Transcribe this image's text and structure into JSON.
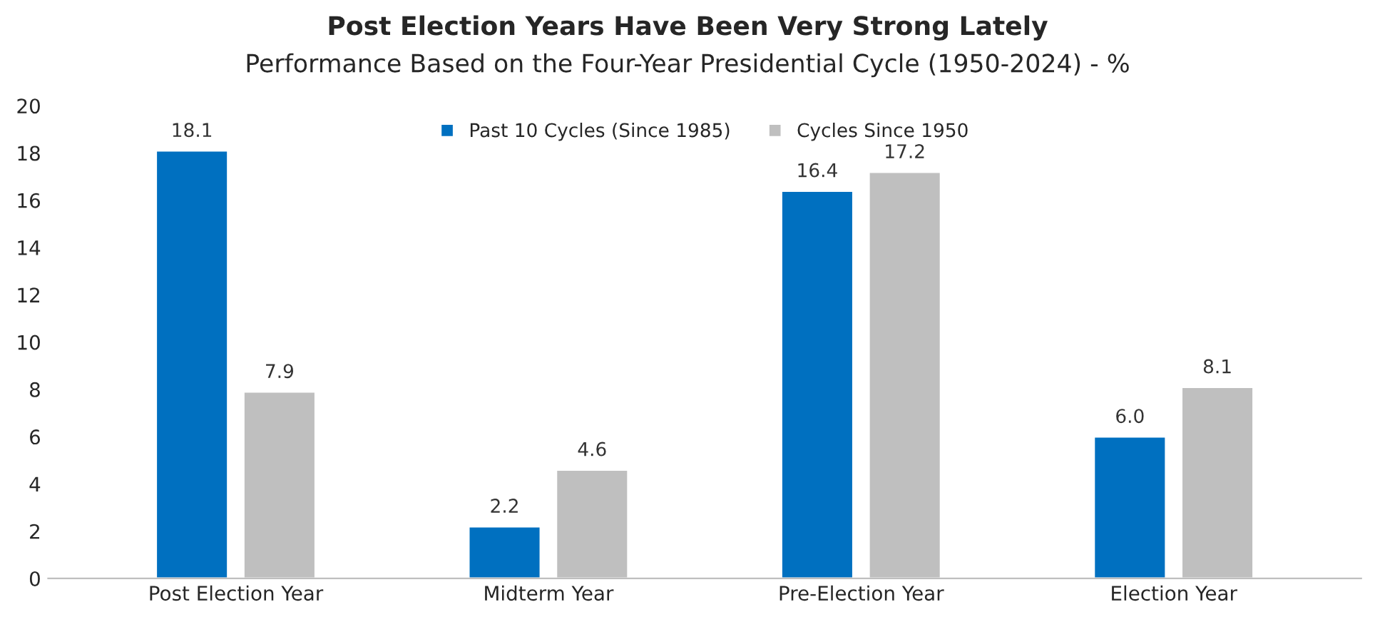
{
  "chart_data": {
    "type": "bar",
    "title": "Post Election Years Have Been Very Strong Lately",
    "subtitle": "Performance Based on the Four-Year Presidential Cycle (1950-2024) - %",
    "categories": [
      "Post Election Year",
      "Midterm Year",
      "Pre-Election Year",
      "Election Year"
    ],
    "series": [
      {
        "name": "Past 10 Cycles (Since 1985)",
        "color": "#0070c0",
        "values": [
          18.1,
          2.2,
          16.4,
          6.0
        ],
        "value_labels": [
          "18.1",
          "2.2",
          "16.4",
          "6.0"
        ]
      },
      {
        "name": "Cycles Since 1950",
        "color": "#bfbfbf",
        "values": [
          7.9,
          4.6,
          17.2,
          8.1
        ],
        "value_labels": [
          "7.9",
          "4.6",
          "17.2",
          "8.1"
        ]
      }
    ],
    "ylim": [
      0,
      20
    ],
    "yticks": [
      0,
      2,
      4,
      6,
      8,
      10,
      12,
      14,
      16,
      18,
      20
    ],
    "grid": false,
    "legend": "top"
  }
}
